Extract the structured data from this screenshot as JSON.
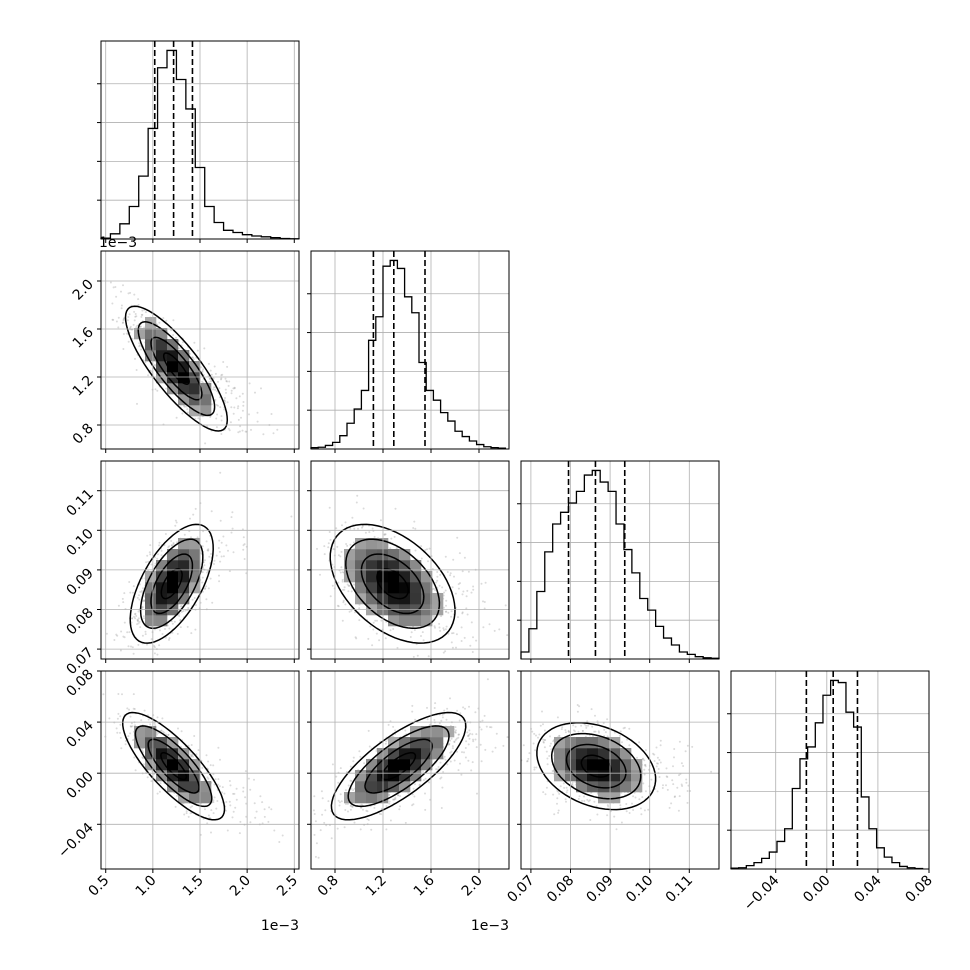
{
  "chart_data": {
    "type": "corner",
    "grid": true,
    "panel_types": {
      "diagonal": "histogram",
      "off_diagonal": "2d-histogram-contour-scatter"
    },
    "colors": {
      "line": "#000000",
      "grid": "#b0b0b0",
      "density_low": "#ffffff",
      "density_high": "#000000"
    },
    "variables": [
      {
        "offset_label": "1e−3",
        "range": [
          0.45,
          2.55
        ],
        "ticks": [
          0.5,
          1.0,
          1.5,
          2.0,
          2.5
        ],
        "tick_labels": [
          "0.5",
          "1.0",
          "1.5",
          "2.0",
          "2.5"
        ],
        "quantiles": [
          1.02,
          1.22,
          1.42
        ]
      },
      {
        "offset_label": "1e−3",
        "range": [
          0.6,
          2.25
        ],
        "ticks": [
          0.8,
          1.2,
          1.6,
          2.0
        ],
        "tick_labels": [
          "0.8",
          "1.2",
          "1.6",
          "2.0"
        ],
        "quantiles": [
          1.12,
          1.29,
          1.55
        ]
      },
      {
        "offset_label": "",
        "range": [
          0.0675,
          0.1175
        ],
        "ticks": [
          0.07,
          0.08,
          0.09,
          0.1,
          0.11
        ],
        "tick_labels": [
          "0.07",
          "0.08",
          "0.09",
          "0.10",
          "0.11"
        ],
        "quantiles": [
          0.0795,
          0.0863,
          0.0937
        ]
      },
      {
        "offset_label": "",
        "range": [
          -0.075,
          0.08
        ],
        "ticks": [
          -0.04,
          0.0,
          0.04,
          0.08
        ],
        "tick_labels": [
          "−0.04",
          "0.00",
          "0.04",
          "0.08"
        ],
        "quantiles": [
          -0.016,
          0.005,
          0.024
        ]
      }
    ],
    "histograms": [
      {
        "bin_edges": [
          0.45,
          0.55,
          0.65,
          0.75,
          0.85,
          0.95,
          1.05,
          1.15,
          1.25,
          1.35,
          1.45,
          1.55,
          1.65,
          1.75,
          1.85,
          1.95,
          2.05,
          2.15,
          2.25,
          2.35,
          2.45,
          2.55
        ],
        "counts": [
          0.2,
          1.2,
          3.5,
          7.5,
          14.5,
          25.5,
          39.5,
          43.5,
          36.8,
          30,
          16.5,
          7.5,
          3.8,
          2,
          1.5,
          1,
          0.7,
          0.5,
          0.3,
          0.1,
          0.05
        ]
      },
      {
        "bin_edges": [
          0.6,
          0.66,
          0.72,
          0.78,
          0.84,
          0.9,
          0.96,
          1.02,
          1.08,
          1.14,
          1.2,
          1.26,
          1.32,
          1.38,
          1.44,
          1.5,
          1.56,
          1.62,
          1.68,
          1.74,
          1.8,
          1.86,
          1.92,
          1.98,
          2.04,
          2.1,
          2.16,
          2.22
        ],
        "counts": [
          0.3,
          0.4,
          0.8,
          1.5,
          3,
          5.8,
          9,
          13.2,
          24.5,
          29.8,
          41.2,
          42.5,
          40.7,
          34.3,
          30.7,
          19.5,
          13.2,
          11,
          8.2,
          6.3,
          4,
          2.8,
          1.8,
          1,
          0.5,
          0.3,
          0.2
        ]
      },
      {
        "bin_edges": [
          0.0675,
          0.0695,
          0.0715,
          0.0735,
          0.0755,
          0.0775,
          0.0795,
          0.0815,
          0.0835,
          0.0855,
          0.0875,
          0.0895,
          0.0915,
          0.0935,
          0.0955,
          0.0975,
          0.0995,
          0.1015,
          0.1035,
          0.1055,
          0.1075,
          0.1095,
          0.1115,
          0.1135,
          0.1155,
          0.1175
        ],
        "counts": [
          3,
          13,
          29,
          46,
          58,
          63,
          67,
          72,
          79,
          81,
          76,
          72,
          58,
          47,
          37,
          26,
          21,
          14,
          9,
          6,
          3,
          2,
          1,
          0.5,
          0.3
        ]
      },
      {
        "bin_edges": [
          -0.075,
          -0.069,
          -0.063,
          -0.057,
          -0.051,
          -0.045,
          -0.039,
          -0.033,
          -0.027,
          -0.021,
          -0.015,
          -0.009,
          -0.003,
          0.003,
          0.009,
          0.015,
          0.021,
          0.027,
          0.033,
          0.039,
          0.045,
          0.051,
          0.057,
          0.063,
          0.069,
          0.075
        ],
        "counts": [
          0.2,
          0.3,
          0.8,
          1.5,
          2.5,
          4,
          6.5,
          9.5,
          19,
          26,
          28.8,
          34.5,
          41,
          44.5,
          44,
          37,
          33.5,
          17,
          9.5,
          5,
          2.8,
          1.5,
          0.6,
          0.3,
          0.1
        ]
      }
    ],
    "correlations": [
      {
        "pair": [
          0,
          1
        ],
        "center": [
          1.25,
          1.27
        ],
        "std": [
          0.27,
          0.26
        ],
        "rho": -0.82
      },
      {
        "pair": [
          0,
          2
        ],
        "center": [
          1.2,
          0.0865
        ],
        "std": [
          0.22,
          0.0075
        ],
        "rho": 0.6
      },
      {
        "pair": [
          1,
          2
        ],
        "center": [
          1.28,
          0.0865
        ],
        "std": [
          0.26,
          0.0075
        ],
        "rho": -0.45
      },
      {
        "pair": [
          0,
          3
        ],
        "center": [
          1.22,
          0.0055
        ],
        "std": [
          0.27,
          0.021
        ],
        "rho": -0.8
      },
      {
        "pair": [
          1,
          3
        ],
        "center": [
          1.33,
          0.0055
        ],
        "std": [
          0.28,
          0.021
        ],
        "rho": 0.75
      },
      {
        "pair": [
          2,
          3
        ],
        "center": [
          0.0865,
          0.0055
        ],
        "std": [
          0.0075,
          0.017
        ],
        "rho": -0.3
      }
    ]
  }
}
